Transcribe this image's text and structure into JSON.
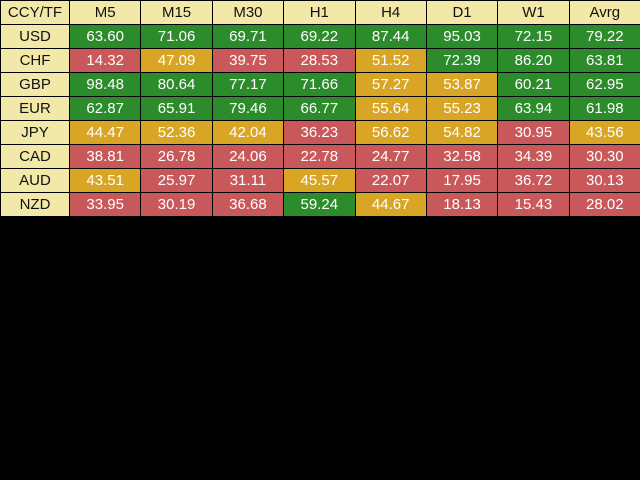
{
  "table": {
    "corner_label": "CCY/TF",
    "columns": [
      "M5",
      "M15",
      "M30",
      "H1",
      "H4",
      "D1",
      "W1",
      "Avrg"
    ],
    "rows": [
      {
        "label": "USD",
        "values": [
          "63.60",
          "71.06",
          "69.71",
          "69.22",
          "87.44",
          "95.03",
          "72.15",
          "79.22"
        ],
        "levels": [
          "green",
          "green",
          "green",
          "green",
          "green",
          "green",
          "green",
          "green"
        ]
      },
      {
        "label": "CHF",
        "values": [
          "14.32",
          "47.09",
          "39.75",
          "28.53",
          "51.52",
          "72.39",
          "86.20",
          "63.81"
        ],
        "levels": [
          "red",
          "orange",
          "red",
          "red",
          "orange",
          "green",
          "green",
          "green"
        ]
      },
      {
        "label": "GBP",
        "values": [
          "98.48",
          "80.64",
          "77.17",
          "71.66",
          "57.27",
          "53.87",
          "60.21",
          "62.95"
        ],
        "levels": [
          "green",
          "green",
          "green",
          "green",
          "orange",
          "orange",
          "green",
          "green"
        ]
      },
      {
        "label": "EUR",
        "values": [
          "62.87",
          "65.91",
          "79.46",
          "66.77",
          "55.64",
          "55.23",
          "63.94",
          "61.98"
        ],
        "levels": [
          "green",
          "green",
          "green",
          "green",
          "orange",
          "orange",
          "green",
          "green"
        ]
      },
      {
        "label": "JPY",
        "values": [
          "44.47",
          "52.36",
          "42.04",
          "36.23",
          "56.62",
          "54.82",
          "30.95",
          "43.56"
        ],
        "levels": [
          "orange",
          "orange",
          "orange",
          "red",
          "orange",
          "orange",
          "red",
          "orange"
        ]
      },
      {
        "label": "CAD",
        "values": [
          "38.81",
          "26.78",
          "24.06",
          "22.78",
          "24.77",
          "32.58",
          "34.39",
          "30.30"
        ],
        "levels": [
          "red",
          "red",
          "red",
          "red",
          "red",
          "red",
          "red",
          "red"
        ]
      },
      {
        "label": "AUD",
        "values": [
          "43.51",
          "25.97",
          "31.11",
          "45.57",
          "22.07",
          "17.95",
          "36.72",
          "30.13"
        ],
        "levels": [
          "orange",
          "red",
          "red",
          "orange",
          "red",
          "red",
          "red",
          "red"
        ]
      },
      {
        "label": "NZD",
        "values": [
          "33.95",
          "30.19",
          "36.68",
          "59.24",
          "44.67",
          "18.13",
          "15.43",
          "28.02"
        ],
        "levels": [
          "red",
          "red",
          "red",
          "green",
          "orange",
          "red",
          "red",
          "red"
        ]
      }
    ]
  },
  "colors": {
    "header_bg": "#F2E9A9",
    "green": "#2C8C2C",
    "orange": "#D8A524",
    "red": "#C9585A",
    "background": "#000000"
  }
}
